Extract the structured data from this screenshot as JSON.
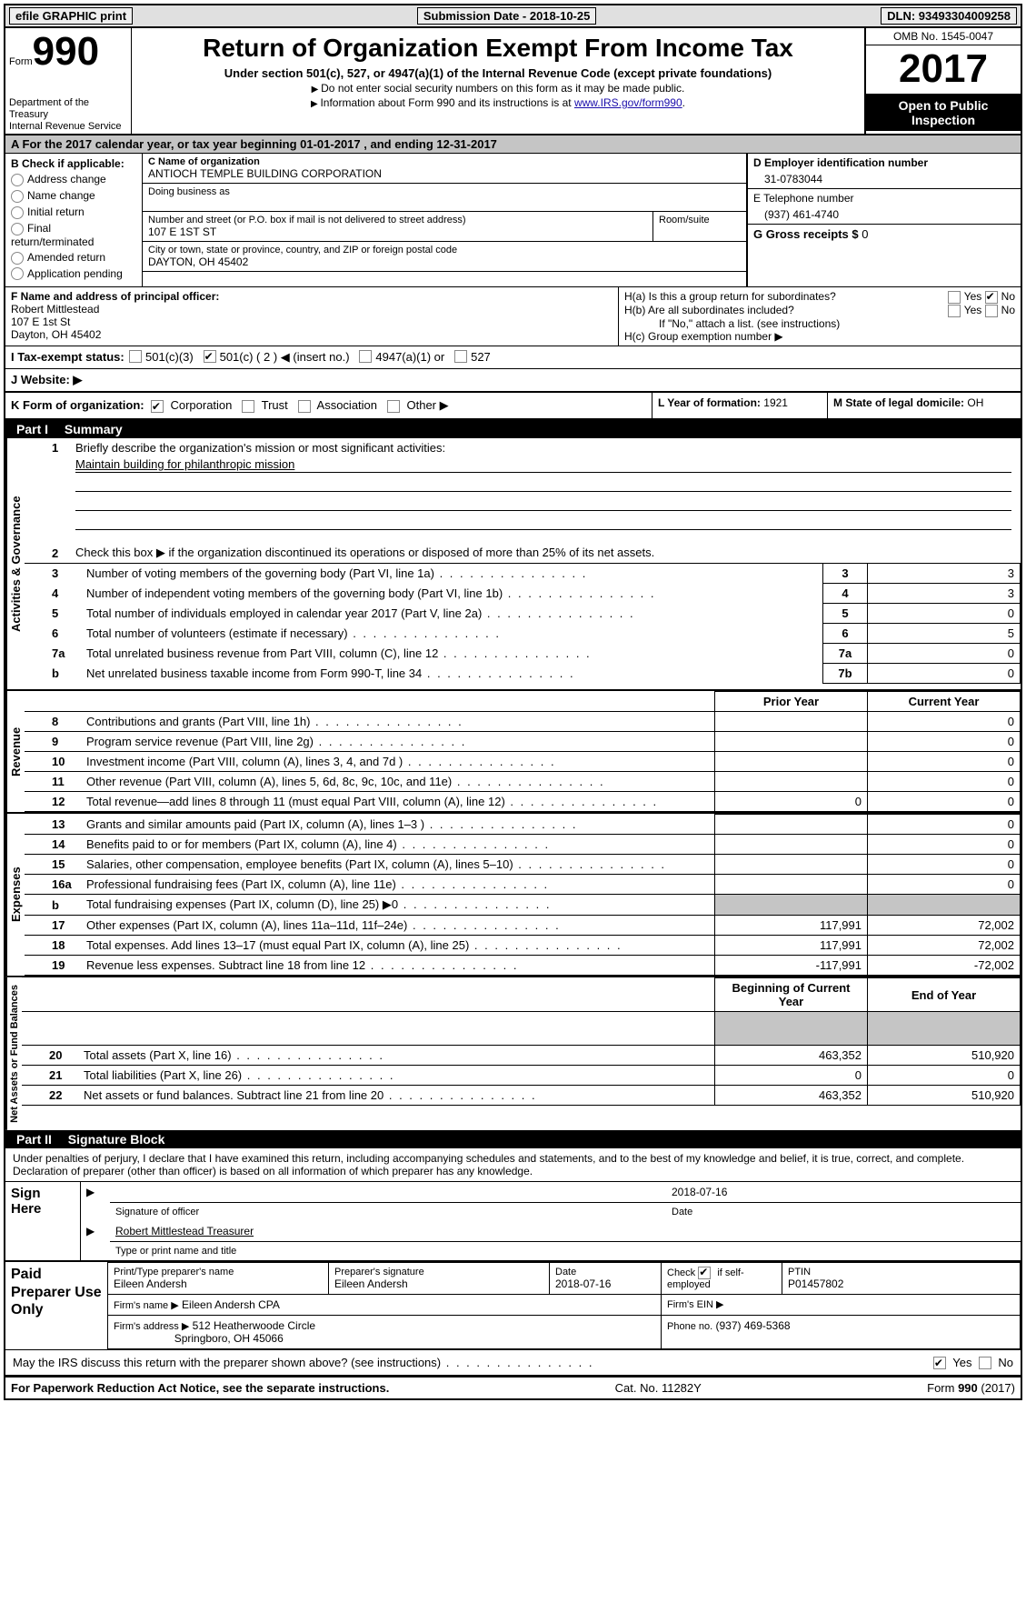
{
  "topbar": {
    "efile": "efile GRAPHIC print",
    "submission": "Submission Date - 2018-10-25",
    "dln": "DLN: 93493304009258"
  },
  "header": {
    "form_label": "Form",
    "form_number": "990",
    "dept1": "Department of the Treasury",
    "dept2": "Internal Revenue Service",
    "title": "Return of Organization Exempt From Income Tax",
    "subtitle": "Under section 501(c), 527, or 4947(a)(1) of the Internal Revenue Code (except private foundations)",
    "line1": "Do not enter social security numbers on this form as it may be made public.",
    "line2a": "Information about Form 990 and its instructions is at ",
    "line2_link": "www.IRS.gov/form990",
    "omb": "OMB No. 1545-0047",
    "year": "2017",
    "open": "Open to Public Inspection"
  },
  "lineA": "A   For the 2017 calendar year, or tax year beginning 01-01-2017   , and ending 12-31-2017",
  "B": {
    "heading": "B Check if applicable:",
    "items": [
      "Address change",
      "Name change",
      "Initial return",
      "Final return/terminated",
      "Amended return",
      "Application pending"
    ]
  },
  "C": {
    "name_label": "C Name of organization",
    "name": "ANTIOCH TEMPLE BUILDING CORPORATION",
    "dba_label": "Doing business as",
    "street_label": "Number and street (or P.O. box if mail is not delivered to street address)",
    "street": "107 E 1ST ST",
    "room_label": "Room/suite",
    "city_label": "City or town, state or province, country, and ZIP or foreign postal code",
    "city": "DAYTON, OH  45402"
  },
  "D": {
    "label": "D Employer identification number",
    "value": "31-0783044"
  },
  "E": {
    "label": "E Telephone number",
    "value": "(937) 461-4740"
  },
  "G": {
    "label": "G Gross receipts $",
    "value": "0"
  },
  "F": {
    "label": "F   Name and address of principal officer:",
    "name": "Robert Mittlestead",
    "addr1": "107 E 1st St",
    "addr2": "Dayton, OH  45402"
  },
  "H": {
    "a": "H(a)  Is this a group return for subordinates?",
    "b": "H(b)  Are all subordinates included?",
    "ifno": "If \"No,\" attach a list. (see instructions)",
    "c": "H(c)  Group exemption number ▶",
    "yes": "Yes",
    "no": "No"
  },
  "I": {
    "label": "I   Tax-exempt status:",
    "o1": "501(c)(3)",
    "o2": "501(c) ( 2 ) ◀ (insert no.)",
    "o3": "4947(a)(1) or",
    "o4": "527"
  },
  "J": "J   Website: ▶",
  "K": {
    "label": "K Form of organization:",
    "o1": "Corporation",
    "o2": "Trust",
    "o3": "Association",
    "o4": "Other ▶"
  },
  "L": {
    "label": "L Year of formation:",
    "value": "1921"
  },
  "M": {
    "label": "M State of legal domicile:",
    "value": "OH"
  },
  "part1": {
    "label": "Part I",
    "title": "Summary"
  },
  "p1": {
    "q1": "Briefly describe the organization's mission or most significant activities:",
    "mission": "Maintain building for philanthropic mission",
    "q2": "Check this box ▶        if the organization discontinued its operations or disposed of more than 25% of its net assets.",
    "vert1": "Activities & Governance",
    "vert2": "Revenue",
    "vert3": "Expenses",
    "vert4": "Net Assets or Fund Balances",
    "rows_gov": [
      {
        "n": "3",
        "d": "Number of voting members of the governing body (Part VI, line 1a)",
        "c": "3",
        "v": "3"
      },
      {
        "n": "4",
        "d": "Number of independent voting members of the governing body (Part VI, line 1b)",
        "c": "4",
        "v": "3"
      },
      {
        "n": "5",
        "d": "Total number of individuals employed in calendar year 2017 (Part V, line 2a)",
        "c": "5",
        "v": "0"
      },
      {
        "n": "6",
        "d": "Total number of volunteers (estimate if necessary)",
        "c": "6",
        "v": "5"
      },
      {
        "n": "7a",
        "d": "Total unrelated business revenue from Part VIII, column (C), line 12",
        "c": "7a",
        "v": "0"
      },
      {
        "n": "b",
        "d": "Net unrelated business taxable income from Form 990-T, line 34",
        "c": "7b",
        "v": "0"
      }
    ],
    "hdr_prior": "Prior Year",
    "hdr_current": "Current Year",
    "rows_rev": [
      {
        "n": "8",
        "d": "Contributions and grants (Part VIII, line 1h)",
        "p": "",
        "c": "0"
      },
      {
        "n": "9",
        "d": "Program service revenue (Part VIII, line 2g)",
        "p": "",
        "c": "0"
      },
      {
        "n": "10",
        "d": "Investment income (Part VIII, column (A), lines 3, 4, and 7d )",
        "p": "",
        "c": "0"
      },
      {
        "n": "11",
        "d": "Other revenue (Part VIII, column (A), lines 5, 6d, 8c, 9c, 10c, and 11e)",
        "p": "",
        "c": "0"
      },
      {
        "n": "12",
        "d": "Total revenue—add lines 8 through 11 (must equal Part VIII, column (A), line 12)",
        "p": "0",
        "c": "0"
      }
    ],
    "rows_exp": [
      {
        "n": "13",
        "d": "Grants and similar amounts paid (Part IX, column (A), lines 1–3 )",
        "p": "",
        "c": "0"
      },
      {
        "n": "14",
        "d": "Benefits paid to or for members (Part IX, column (A), line 4)",
        "p": "",
        "c": "0"
      },
      {
        "n": "15",
        "d": "Salaries, other compensation, employee benefits (Part IX, column (A), lines 5–10)",
        "p": "",
        "c": "0"
      },
      {
        "n": "16a",
        "d": "Professional fundraising fees (Part IX, column (A), line 11e)",
        "p": "",
        "c": "0"
      },
      {
        "n": "b",
        "d": "Total fundraising expenses (Part IX, column (D), line 25) ▶0",
        "p": "SHADE",
        "c": "SHADE"
      },
      {
        "n": "17",
        "d": "Other expenses (Part IX, column (A), lines 11a–11d, 11f–24e)",
        "p": "117,991",
        "c": "72,002"
      },
      {
        "n": "18",
        "d": "Total expenses. Add lines 13–17 (must equal Part IX, column (A), line 25)",
        "p": "117,991",
        "c": "72,002"
      },
      {
        "n": "19",
        "d": "Revenue less expenses. Subtract line 18 from line 12",
        "p": "-117,991",
        "c": "-72,002"
      }
    ],
    "hdr_begin": "Beginning of Current Year",
    "hdr_end": "End of Year",
    "rows_na": [
      {
        "n": "20",
        "d": "Total assets (Part X, line 16)",
        "p": "463,352",
        "c": "510,920"
      },
      {
        "n": "21",
        "d": "Total liabilities (Part X, line 26)",
        "p": "0",
        "c": "0"
      },
      {
        "n": "22",
        "d": "Net assets or fund balances. Subtract line 21 from line 20",
        "p": "463,352",
        "c": "510,920"
      }
    ]
  },
  "part2": {
    "label": "Part II",
    "title": "Signature Block"
  },
  "sig": {
    "declaration": "Under penalties of perjury, I declare that I have examined this return, including accompanying schedules and statements, and to the best of my knowledge and belief, it is true, correct, and complete. Declaration of preparer (other than officer) is based on all information of which preparer has any knowledge.",
    "sign_here": "Sign Here",
    "sig_of_officer": "Signature of officer",
    "date1": "2018-07-16",
    "date_lbl": "Date",
    "officer_name": "Robert Mittlestead Treasurer",
    "type_name": "Type or print name and title",
    "paid": "Paid Preparer Use Only",
    "prep_name_lbl": "Print/Type preparer's name",
    "prep_name": "Eileen Andersh",
    "prep_sig_lbl": "Preparer's signature",
    "prep_sig": "Eileen Andersh",
    "prep_date_lbl": "Date",
    "prep_date": "2018-07-16",
    "check_lbl": "Check",
    "if_self": "if self-employed",
    "ptin_lbl": "PTIN",
    "ptin": "P01457802",
    "firm_name_lbl": "Firm's name    ▶",
    "firm_name": "Eileen Andersh CPA",
    "firm_ein_lbl": "Firm's EIN ▶",
    "firm_addr_lbl": "Firm's address ▶",
    "firm_addr1": "512 Heatherwoode Circle",
    "firm_addr2": "Springboro, OH  45066",
    "phone_lbl": "Phone no.",
    "phone": "(937) 469-5368",
    "may_irs": "May the IRS discuss this return with the preparer shown above? (see instructions)",
    "yes": "Yes",
    "no": "No"
  },
  "footer": {
    "left": "For Paperwork Reduction Act Notice, see the separate instructions.",
    "mid": "Cat. No. 11282Y",
    "right": "Form 990 (2017)"
  }
}
